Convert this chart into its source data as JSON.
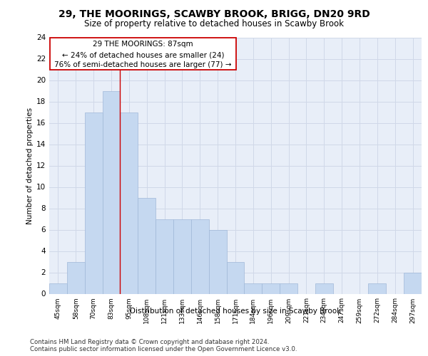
{
  "title1": "29, THE MOORINGS, SCAWBY BROOK, BRIGG, DN20 9RD",
  "title2": "Size of property relative to detached houses in Scawby Brook",
  "xlabel": "Distribution of detached houses by size in Scawby Brook",
  "ylabel": "Number of detached properties",
  "categories": [
    "45sqm",
    "58sqm",
    "70sqm",
    "83sqm",
    "95sqm",
    "108sqm",
    "121sqm",
    "133sqm",
    "146sqm",
    "158sqm",
    "171sqm",
    "184sqm",
    "196sqm",
    "209sqm",
    "221sqm",
    "234sqm",
    "247sqm",
    "259sqm",
    "272sqm",
    "284sqm",
    "297sqm"
  ],
  "values": [
    1,
    3,
    17,
    19,
    17,
    9,
    7,
    7,
    7,
    6,
    3,
    1,
    1,
    1,
    0,
    1,
    0,
    0,
    1,
    0,
    2
  ],
  "bar_color": "#c5d8f0",
  "bar_edge_color": "#a0b8d8",
  "grid_color": "#d0d8e8",
  "background_color": "#e8eef8",
  "annotation_box_color": "#ffffff",
  "annotation_border_color": "#cc0000",
  "red_line_x": 3.5,
  "annotation_text_line1": "29 THE MOORINGS: 87sqm",
  "annotation_text_line2": "← 24% of detached houses are smaller (24)",
  "annotation_text_line3": "76% of semi-detached houses are larger (77) →",
  "ylim": [
    0,
    24
  ],
  "yticks": [
    0,
    2,
    4,
    6,
    8,
    10,
    12,
    14,
    16,
    18,
    20,
    22,
    24
  ],
  "footer1": "Contains HM Land Registry data © Crown copyright and database right 2024.",
  "footer2": "Contains public sector information licensed under the Open Government Licence v3.0."
}
